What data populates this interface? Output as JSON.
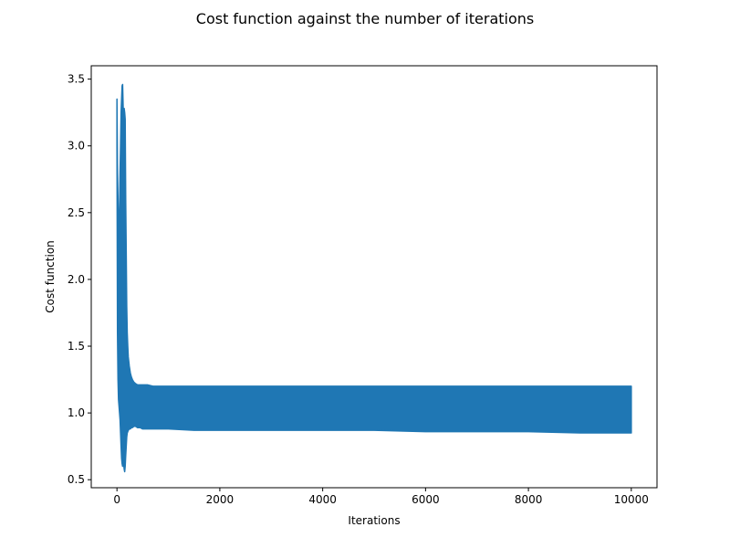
{
  "chart_data": {
    "type": "line",
    "title": "Cost function against the number of iterations",
    "xlabel": "Iterations",
    "ylabel": "Cost function",
    "xlim": [
      -500,
      10500
    ],
    "ylim": [
      0.44,
      3.6
    ],
    "xticks": [
      0,
      2000,
      4000,
      6000,
      8000,
      10000
    ],
    "yticks": [
      0.5,
      1.0,
      1.5,
      2.0,
      2.5,
      3.0,
      3.5
    ],
    "xtick_labels": [
      "0",
      "2000",
      "4000",
      "6000",
      "8000",
      "10000"
    ],
    "ytick_labels": [
      "0.5",
      "1.0",
      "1.5",
      "2.0",
      "2.5",
      "3.0",
      "3.5"
    ],
    "grid": false,
    "legend": "none",
    "series": [
      {
        "color": "#1f77b4",
        "x": [
          0,
          10,
          20,
          30,
          40,
          50,
          60,
          70,
          80,
          90,
          100,
          110,
          120,
          130,
          140,
          150,
          160,
          170,
          180,
          190,
          200,
          210,
          220,
          240,
          260,
          280,
          300,
          330,
          360,
          400,
          450,
          500,
          600,
          700,
          800,
          1000,
          1500,
          2000,
          3000,
          4000,
          4700,
          5000,
          6000,
          7000,
          8000,
          9000,
          10000
        ],
        "lower": [
          3.0,
          1.6,
          1.25,
          1.1,
          1.05,
          1.0,
          0.95,
          0.85,
          0.75,
          0.66,
          0.62,
          0.6,
          0.64,
          0.62,
          0.58,
          0.56,
          0.6,
          0.68,
          0.75,
          0.82,
          0.85,
          0.86,
          0.87,
          0.88,
          0.88,
          0.89,
          0.89,
          0.9,
          0.9,
          0.89,
          0.89,
          0.88,
          0.88,
          0.88,
          0.88,
          0.88,
          0.87,
          0.87,
          0.87,
          0.87,
          0.87,
          0.87,
          0.86,
          0.86,
          0.86,
          0.85,
          0.85
        ],
        "upper": [
          3.35,
          2.8,
          2.6,
          2.4,
          2.3,
          2.5,
          2.8,
          3.0,
          3.25,
          3.35,
          3.45,
          3.46,
          3.3,
          3.2,
          3.28,
          3.25,
          3.2,
          2.6,
          2.2,
          1.8,
          1.6,
          1.5,
          1.42,
          1.35,
          1.3,
          1.27,
          1.25,
          1.23,
          1.22,
          1.21,
          1.21,
          1.21,
          1.21,
          1.2,
          1.2,
          1.2,
          1.2,
          1.2,
          1.2,
          1.2,
          1.2,
          1.2,
          1.2,
          1.2,
          1.2,
          1.2,
          1.2
        ]
      }
    ]
  }
}
